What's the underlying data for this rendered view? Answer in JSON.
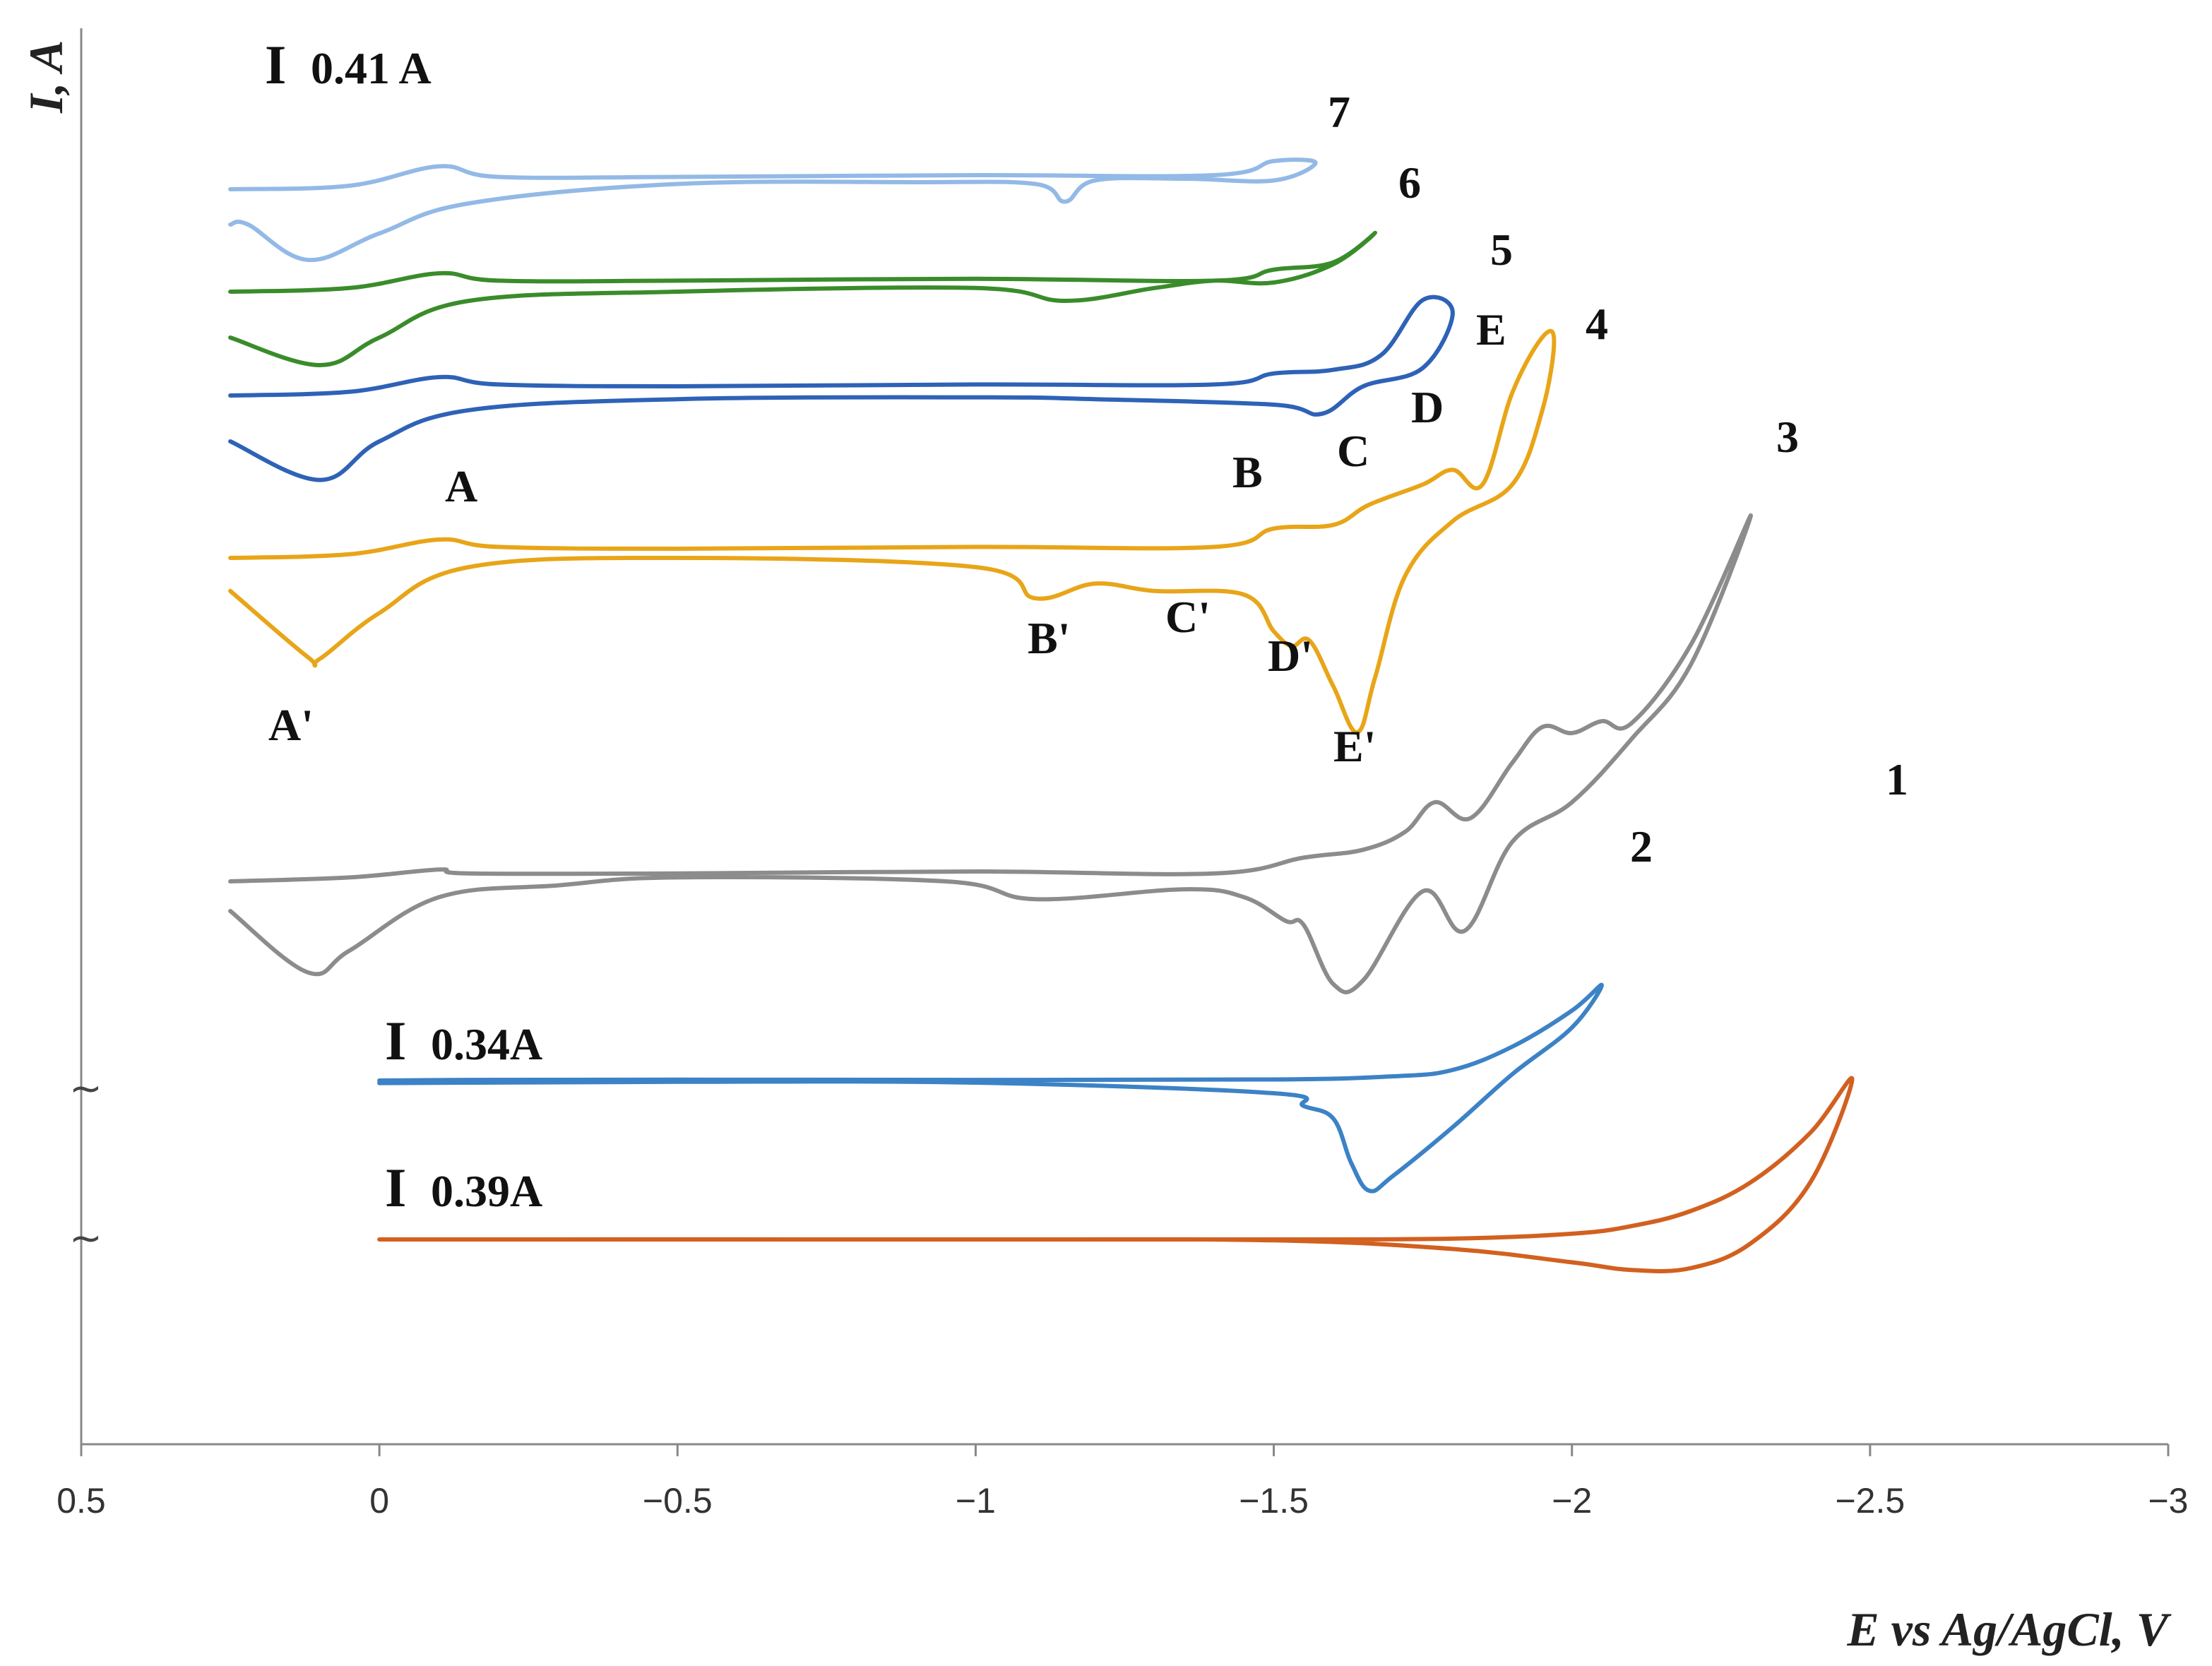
{
  "chart_data": {
    "type": "line",
    "title": "",
    "xlabel": "E vs Ag/AgCl, V",
    "ylabel": "I, A",
    "xlim": [
      0.5,
      -3
    ],
    "x_ticks": [
      "0.5",
      "0",
      "−0.5",
      "−1",
      "−1.5",
      "−2",
      "−2.5",
      "−3"
    ],
    "x_tick_values": [
      0.5,
      0,
      -0.5,
      -1,
      -1.5,
      -2,
      -2.5,
      -3
    ],
    "axis_break_symbol": "~",
    "scale_bars": [
      {
        "label": "0.41 A",
        "bar": "I"
      },
      {
        "label": "0.34A",
        "bar": "I"
      },
      {
        "label": "0.39A",
        "bar": "I"
      }
    ],
    "series": [
      {
        "name": "1",
        "color": "#D2601F",
        "forward": [
          [
            0,
            0.0
          ],
          [
            -0.5,
            0.0
          ],
          [
            -1,
            0.0
          ],
          [
            -1.5,
            0.0
          ],
          [
            -1.8,
            0.004
          ],
          [
            -2.0,
            0.03
          ],
          [
            -2.1,
            0.07
          ],
          [
            -2.2,
            0.15
          ],
          [
            -2.3,
            0.3
          ],
          [
            -2.4,
            0.56
          ],
          [
            -2.47,
            0.84
          ]
        ],
        "reverse": [
          [
            -2.47,
            0.84
          ],
          [
            -2.4,
            0.3
          ],
          [
            -2.3,
            -0.02
          ],
          [
            -2.2,
            -0.15
          ],
          [
            -2.1,
            -0.16
          ],
          [
            -2.0,
            -0.12
          ],
          [
            -1.8,
            -0.05
          ],
          [
            -1.5,
            -0.005
          ],
          [
            -1.0,
            0.0
          ],
          [
            0,
            0.0
          ]
        ]
      },
      {
        "name": "2",
        "color": "#3C82C6",
        "forward": [
          [
            0,
            0.0
          ],
          [
            -0.15,
            0.003
          ],
          [
            -0.5,
            0.004
          ],
          [
            -1.0,
            0.003
          ],
          [
            -1.5,
            0.005
          ],
          [
            -1.7,
            0.02
          ],
          [
            -1.8,
            0.05
          ],
          [
            -1.9,
            0.16
          ],
          [
            -2.0,
            0.33
          ],
          [
            -2.05,
            0.45
          ]
        ],
        "reverse": [
          [
            -2.05,
            0.45
          ],
          [
            -2.0,
            0.25
          ],
          [
            -1.9,
            0.03
          ],
          [
            -1.8,
            -0.22
          ],
          [
            -1.7,
            -0.45
          ],
          [
            -1.66,
            -0.52
          ],
          [
            -1.63,
            -0.39
          ],
          [
            -1.6,
            -0.18
          ],
          [
            -1.55,
            -0.12
          ],
          [
            -1.5,
            -0.06
          ],
          [
            -1.0,
            -0.01
          ],
          [
            -0.5,
            -0.006
          ],
          [
            -0.15,
            -0.01
          ],
          [
            0,
            -0.012
          ]
        ]
      },
      {
        "name": "3",
        "color": "#8C8C8C",
        "forward": [
          [
            0.25,
            0.0
          ],
          [
            0.05,
            0.02
          ],
          [
            -0.1,
            0.06
          ],
          [
            -0.15,
            0.04
          ],
          [
            -0.5,
            0.04
          ],
          [
            -1.0,
            0.05
          ],
          [
            -1.4,
            0.04
          ],
          [
            -1.55,
            0.12
          ],
          [
            -1.65,
            0.16
          ],
          [
            -1.72,
            0.25
          ],
          [
            -1.77,
            0.4
          ],
          [
            -1.83,
            0.32
          ],
          [
            -1.9,
            0.6
          ],
          [
            -1.95,
            0.78
          ],
          [
            -2.0,
            0.75
          ],
          [
            -2.05,
            0.81
          ],
          [
            -2.1,
            0.8
          ],
          [
            -2.2,
            1.2
          ],
          [
            -2.3,
            1.85
          ]
        ],
        "reverse": [
          [
            -2.3,
            1.85
          ],
          [
            -2.2,
            1.1
          ],
          [
            -2.1,
            0.72
          ],
          [
            -2.0,
            0.4
          ],
          [
            -1.9,
            0.2
          ],
          [
            -1.82,
            -0.25
          ],
          [
            -1.75,
            -0.05
          ],
          [
            -1.65,
            -0.5
          ],
          [
            -1.6,
            -0.52
          ],
          [
            -1.55,
            -0.22
          ],
          [
            -1.52,
            -0.2
          ],
          [
            -1.45,
            -0.08
          ],
          [
            -1.35,
            -0.04
          ],
          [
            -1.1,
            -0.09
          ],
          [
            -0.95,
            0.0
          ],
          [
            -0.5,
            0.02
          ],
          [
            -0.3,
            -0.02
          ],
          [
            -0.1,
            -0.08
          ],
          [
            0.05,
            -0.35
          ],
          [
            0.12,
            -0.46
          ],
          [
            0.25,
            -0.15
          ]
        ]
      },
      {
        "name": "4",
        "color": "#E8A518",
        "forward": [
          [
            0.25,
            0.0
          ],
          [
            0.05,
            0.02
          ],
          [
            -0.1,
            0.1
          ],
          [
            -0.2,
            0.06
          ],
          [
            -0.5,
            0.05
          ],
          [
            -1.0,
            0.06
          ],
          [
            -1.4,
            0.06
          ],
          [
            -1.5,
            0.16
          ],
          [
            -1.6,
            0.18
          ],
          [
            -1.66,
            0.29
          ],
          [
            -1.75,
            0.4
          ],
          [
            -1.8,
            0.48
          ],
          [
            -1.85,
            0.4
          ],
          [
            -1.9,
            0.9
          ],
          [
            -1.95,
            1.2
          ],
          [
            -1.97,
            1.18
          ]
        ],
        "reverse": [
          [
            -1.97,
            1.18
          ],
          [
            -1.95,
            0.8
          ],
          [
            -1.9,
            0.4
          ],
          [
            -1.8,
            0.2
          ],
          [
            -1.72,
            -0.1
          ],
          [
            -1.67,
            -0.65
          ],
          [
            -1.64,
            -0.95
          ],
          [
            -1.6,
            -0.7
          ],
          [
            -1.56,
            -0.45
          ],
          [
            -1.53,
            -0.48
          ],
          [
            -1.5,
            -0.4
          ],
          [
            -1.45,
            -0.2
          ],
          [
            -1.3,
            -0.18
          ],
          [
            -1.2,
            -0.14
          ],
          [
            -1.1,
            -0.22
          ],
          [
            -1.0,
            -0.05
          ],
          [
            -0.5,
            0.0
          ],
          [
            -0.15,
            -0.05
          ],
          [
            0.0,
            -0.3
          ],
          [
            0.1,
            -0.55
          ],
          [
            0.12,
            -0.54
          ],
          [
            0.25,
            -0.18
          ]
        ]
      },
      {
        "name": "5",
        "color": "#2E62B7",
        "forward": [
          [
            0.25,
            0.0
          ],
          [
            0.05,
            0.02
          ],
          [
            -0.1,
            0.1
          ],
          [
            -0.2,
            0.06
          ],
          [
            -0.5,
            0.05
          ],
          [
            -1.0,
            0.06
          ],
          [
            -1.4,
            0.06
          ],
          [
            -1.5,
            0.12
          ],
          [
            -1.6,
            0.14
          ],
          [
            -1.68,
            0.22
          ],
          [
            -1.75,
            0.52
          ],
          [
            -1.8,
            0.45
          ]
        ],
        "reverse": [
          [
            -1.8,
            0.45
          ],
          [
            -1.75,
            0.15
          ],
          [
            -1.65,
            0.05
          ],
          [
            -1.58,
            -0.1
          ],
          [
            -1.5,
            -0.05
          ],
          [
            -1.2,
            -0.02
          ],
          [
            -1.0,
            -0.01
          ],
          [
            -0.5,
            -0.02
          ],
          [
            -0.15,
            -0.08
          ],
          [
            0.0,
            -0.25
          ],
          [
            0.1,
            -0.46
          ],
          [
            0.25,
            -0.25
          ]
        ]
      },
      {
        "name": "6",
        "color": "#3A8C2B",
        "forward": [
          [
            0.25,
            0.0
          ],
          [
            0.05,
            0.02
          ],
          [
            -0.1,
            0.1
          ],
          [
            -0.2,
            0.06
          ],
          [
            -0.5,
            0.06
          ],
          [
            -1.0,
            0.07
          ],
          [
            -1.4,
            0.06
          ],
          [
            -1.5,
            0.12
          ],
          [
            -1.6,
            0.16
          ],
          [
            -1.67,
            0.32
          ]
        ],
        "reverse": [
          [
            -1.67,
            0.32
          ],
          [
            -1.6,
            0.15
          ],
          [
            -1.5,
            0.05
          ],
          [
            -1.4,
            0.06
          ],
          [
            -1.3,
            0.02
          ],
          [
            -1.15,
            -0.05
          ],
          [
            -1.0,
            0.02
          ],
          [
            -0.5,
            0.0
          ],
          [
            -0.15,
            -0.05
          ],
          [
            0.0,
            -0.25
          ],
          [
            0.1,
            -0.4
          ],
          [
            0.25,
            -0.25
          ]
        ]
      },
      {
        "name": "7",
        "color": "#93B9E6",
        "forward": [
          [
            0.25,
            0.0
          ],
          [
            0.05,
            0.02
          ],
          [
            -0.1,
            0.13
          ],
          [
            -0.2,
            0.07
          ],
          [
            -0.5,
            0.07
          ],
          [
            -1.0,
            0.08
          ],
          [
            -1.4,
            0.08
          ],
          [
            -1.5,
            0.16
          ],
          [
            -1.57,
            0.15
          ]
        ],
        "reverse": [
          [
            -1.57,
            0.15
          ],
          [
            -1.5,
            0.05
          ],
          [
            -1.35,
            0.06
          ],
          [
            -1.2,
            0.05
          ],
          [
            -1.15,
            -0.07
          ],
          [
            -1.1,
            0.03
          ],
          [
            -0.9,
            0.04
          ],
          [
            -0.5,
            0.03
          ],
          [
            -0.15,
            -0.08
          ],
          [
            0.0,
            -0.25
          ],
          [
            0.12,
            -0.4
          ],
          [
            0.22,
            -0.2
          ],
          [
            0.25,
            -0.2
          ]
        ]
      }
    ],
    "peak_labels": [
      "A",
      "B",
      "C",
      "D",
      "E",
      "A'",
      "B'",
      "C'",
      "D'",
      "E'"
    ]
  }
}
